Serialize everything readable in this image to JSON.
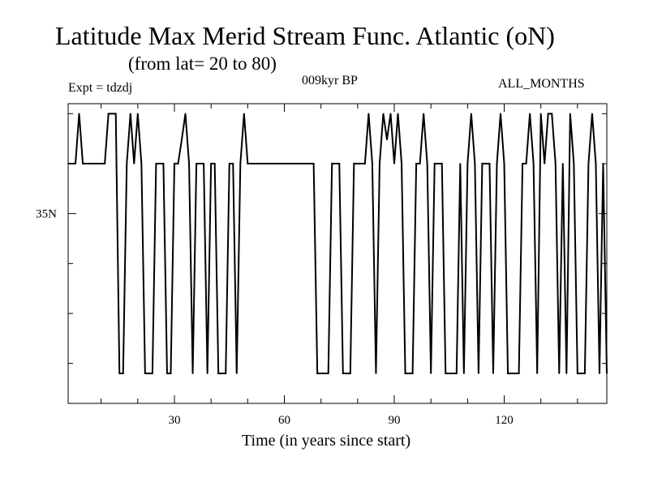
{
  "chart_data": {
    "type": "line",
    "title": "Latitude Max Merid Stream Func. Atlantic (oN)",
    "subtitle": "(from lat= 20 to 80)",
    "experiment_label": "Expt = tdzdj",
    "period_label": "009kyr BP",
    "season_label": "ALL_MONTHS",
    "xlabel": "Time (in years since start)",
    "ylabel": "",
    "xlim": [
      1,
      148
    ],
    "ylim": [
      25.5,
      40.5
    ],
    "x_ticks": [
      30,
      60,
      90,
      120
    ],
    "x_tick_labels": [
      "30",
      "60",
      "90",
      "120"
    ],
    "y_ticks": [
      35
    ],
    "y_tick_labels": [
      "35N"
    ],
    "grid": false,
    "series": [
      {
        "points": [
          [
            1,
            37.5
          ],
          [
            2,
            37.5
          ],
          [
            3,
            37.5
          ],
          [
            4,
            40
          ],
          [
            5,
            37.5
          ],
          [
            6,
            37.5
          ],
          [
            7,
            37.5
          ],
          [
            8,
            37.5
          ],
          [
            9,
            37.5
          ],
          [
            10,
            37.5
          ],
          [
            11,
            37.5
          ],
          [
            12,
            40
          ],
          [
            13,
            40
          ],
          [
            14,
            40
          ],
          [
            15,
            27
          ],
          [
            16,
            27
          ],
          [
            17,
            37.5
          ],
          [
            18,
            40
          ],
          [
            19,
            37.5
          ],
          [
            20,
            40
          ],
          [
            21,
            37.5
          ],
          [
            22,
            27
          ],
          [
            23,
            27
          ],
          [
            24,
            27
          ],
          [
            25,
            37.5
          ],
          [
            26,
            37.5
          ],
          [
            27,
            37.5
          ],
          [
            28,
            27
          ],
          [
            29,
            27
          ],
          [
            30,
            37.5
          ],
          [
            31,
            37.5
          ],
          [
            32,
            38.7
          ],
          [
            33,
            40
          ],
          [
            34,
            37.5
          ],
          [
            35,
            27
          ],
          [
            36,
            37.5
          ],
          [
            37,
            37.5
          ],
          [
            38,
            37.5
          ],
          [
            39,
            27
          ],
          [
            40,
            37.5
          ],
          [
            41,
            37.5
          ],
          [
            42,
            27
          ],
          [
            43,
            27
          ],
          [
            44,
            27
          ],
          [
            45,
            37.5
          ],
          [
            46,
            37.5
          ],
          [
            47,
            27
          ],
          [
            48,
            37.5
          ],
          [
            49,
            40
          ],
          [
            50,
            37.5
          ],
          [
            51,
            37.5
          ],
          [
            52,
            37.5
          ],
          [
            53,
            37.5
          ],
          [
            54,
            37.5
          ],
          [
            55,
            37.5
          ],
          [
            56,
            37.5
          ],
          [
            57,
            37.5
          ],
          [
            58,
            37.5
          ],
          [
            59,
            37.5
          ],
          [
            60,
            37.5
          ],
          [
            61,
            37.5
          ],
          [
            62,
            37.5
          ],
          [
            63,
            37.5
          ],
          [
            64,
            37.5
          ],
          [
            65,
            37.5
          ],
          [
            66,
            37.5
          ],
          [
            67,
            37.5
          ],
          [
            68,
            37.5
          ],
          [
            69,
            27
          ],
          [
            70,
            27
          ],
          [
            71,
            27
          ],
          [
            72,
            27
          ],
          [
            73,
            37.5
          ],
          [
            74,
            37.5
          ],
          [
            75,
            37.5
          ],
          [
            76,
            27
          ],
          [
            77,
            27
          ],
          [
            78,
            27
          ],
          [
            79,
            37.5
          ],
          [
            80,
            37.5
          ],
          [
            81,
            37.5
          ],
          [
            82,
            37.5
          ],
          [
            83,
            40
          ],
          [
            84,
            37.5
          ],
          [
            85,
            27
          ],
          [
            86,
            37.5
          ],
          [
            87,
            40
          ],
          [
            88,
            38.7
          ],
          [
            89,
            40
          ],
          [
            90,
            37.5
          ],
          [
            91,
            40
          ],
          [
            92,
            37.5
          ],
          [
            93,
            27
          ],
          [
            94,
            27
          ],
          [
            95,
            27
          ],
          [
            96,
            37.5
          ],
          [
            97,
            37.5
          ],
          [
            98,
            40
          ],
          [
            99,
            37.5
          ],
          [
            100,
            27
          ],
          [
            101,
            37.5
          ],
          [
            102,
            37.5
          ],
          [
            103,
            37.5
          ],
          [
            104,
            27
          ],
          [
            105,
            27
          ],
          [
            106,
            27
          ],
          [
            107,
            27
          ],
          [
            108,
            37.5
          ],
          [
            109,
            27
          ],
          [
            110,
            37.5
          ],
          [
            111,
            40
          ],
          [
            112,
            37.5
          ],
          [
            113,
            27
          ],
          [
            114,
            37.5
          ],
          [
            115,
            37.5
          ],
          [
            116,
            37.5
          ],
          [
            117,
            27
          ],
          [
            118,
            37.5
          ],
          [
            119,
            40
          ],
          [
            120,
            37.5
          ],
          [
            121,
            27
          ],
          [
            122,
            27
          ],
          [
            123,
            27
          ],
          [
            124,
            27
          ],
          [
            125,
            37.5
          ],
          [
            126,
            37.5
          ],
          [
            127,
            40
          ],
          [
            128,
            37.5
          ],
          [
            129,
            27
          ],
          [
            130,
            40
          ],
          [
            131,
            37.5
          ],
          [
            132,
            40
          ],
          [
            133,
            40
          ],
          [
            134,
            37.5
          ],
          [
            135,
            27
          ],
          [
            136,
            37.5
          ],
          [
            137,
            27
          ],
          [
            138,
            40
          ],
          [
            139,
            37.5
          ],
          [
            140,
            27
          ],
          [
            141,
            27
          ],
          [
            142,
            27
          ],
          [
            143,
            37.5
          ],
          [
            144,
            40
          ],
          [
            145,
            37.5
          ],
          [
            146,
            27
          ],
          [
            147,
            37.5
          ],
          [
            148,
            27
          ]
        ]
      }
    ]
  }
}
